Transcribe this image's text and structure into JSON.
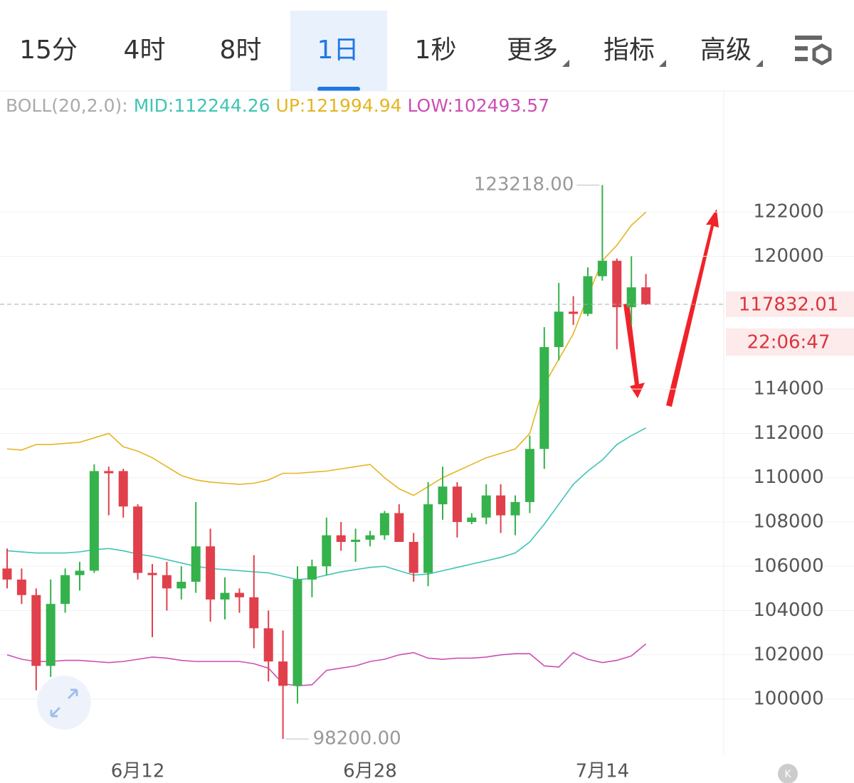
{
  "tabs": [
    {
      "label": "15分"
    },
    {
      "label": "4时"
    },
    {
      "label": "8时"
    },
    {
      "label": "1日"
    },
    {
      "label": "1秒"
    },
    {
      "label": "更多"
    },
    {
      "label": "指标"
    },
    {
      "label": "高级"
    }
  ],
  "chart_data": {
    "type": "candlestick",
    "indicator": {
      "label": "BOLL(20,2.0):",
      "mid": "MID:112244.26",
      "up": "UP:121994.94",
      "low": "LOW:102493.57"
    },
    "categories": [
      null,
      null,
      null,
      null,
      null,
      null,
      null,
      null,
      null,
      "6月12",
      null,
      null,
      null,
      null,
      null,
      null,
      null,
      null,
      null,
      null,
      null,
      null,
      null,
      null,
      null,
      "6月28",
      null,
      null,
      null,
      null,
      null,
      null,
      null,
      null,
      null,
      null,
      null,
      null,
      null,
      null,
      null,
      "7月14",
      null,
      null,
      null
    ],
    "open": [
      105900,
      105400,
      104700,
      101500,
      104300,
      105600,
      105800,
      110300,
      110300,
      108700,
      105700,
      105600,
      105000,
      105300,
      106900,
      104500,
      104800,
      104600,
      103200,
      101700,
      100600,
      105400,
      106000,
      107400,
      107100,
      107200,
      107400,
      108400,
      107100,
      105700,
      108800,
      109600,
      108000,
      108200,
      109200,
      108300,
      108900,
      111300,
      115900,
      117500,
      117400,
      119100,
      119800,
      117700,
      118600
    ],
    "high": [
      106800,
      105900,
      105000,
      105400,
      105900,
      106200,
      110600,
      110500,
      110400,
      108800,
      106100,
      106200,
      106000,
      108900,
      107700,
      105500,
      105000,
      106500,
      104000,
      103100,
      106000,
      106300,
      108200,
      108000,
      107700,
      107600,
      108500,
      108800,
      107500,
      109800,
      110500,
      109800,
      108400,
      109700,
      109700,
      109200,
      111900,
      116800,
      118800,
      118200,
      119500,
      123218,
      119900,
      120000,
      119200
    ],
    "low": [
      105000,
      104300,
      100400,
      101000,
      103900,
      104900,
      105700,
      108300,
      108200,
      105400,
      102800,
      104000,
      104500,
      104800,
      103500,
      103600,
      103900,
      102300,
      100800,
      98200,
      99800,
      104600,
      105600,
      106700,
      106200,
      106900,
      107200,
      107200,
      105300,
      105100,
      108100,
      107300,
      107900,
      107900,
      107500,
      107400,
      108400,
      110400,
      115300,
      116900,
      117300,
      118900,
      115800,
      116900,
      117800
    ],
    "close": [
      105400,
      104700,
      101500,
      104300,
      105600,
      105800,
      110300,
      110200,
      108700,
      105700,
      105600,
      105000,
      105300,
      106900,
      104500,
      104800,
      104600,
      103200,
      101700,
      100600,
      105400,
      106000,
      107400,
      107100,
      107200,
      107400,
      108400,
      107100,
      105700,
      108800,
      109600,
      108000,
      108200,
      109200,
      108300,
      108900,
      111300,
      115900,
      117500,
      117400,
      119100,
      119800,
      117700,
      118600,
      117832.01
    ],
    "bands": [
      {
        "name": "UP",
        "color": "#e6b422",
        "values": [
          111300,
          111250,
          111500,
          111500,
          111550,
          111600,
          111800,
          112000,
          111400,
          111200,
          110900,
          110500,
          110100,
          109900,
          109800,
          109750,
          109700,
          109750,
          109900,
          110200,
          110200,
          110250,
          110300,
          110400,
          110500,
          110600,
          110000,
          109500,
          109200,
          109600,
          110000,
          110300,
          110600,
          110900,
          111100,
          111300,
          112000,
          114200,
          115350,
          116500,
          118200,
          119800,
          120500,
          121400,
          121994.94
        ]
      },
      {
        "name": "MID",
        "color": "#40c4b4",
        "values": [
          106700,
          106650,
          106600,
          106600,
          106600,
          106650,
          106750,
          106800,
          106700,
          106550,
          106450,
          106300,
          106150,
          106000,
          105900,
          105850,
          105800,
          105750,
          105700,
          105550,
          105400,
          105450,
          105600,
          105750,
          105850,
          105950,
          106000,
          105800,
          105600,
          105650,
          105800,
          105950,
          106100,
          106250,
          106400,
          106600,
          107100,
          107900,
          108800,
          109700,
          110300,
          110800,
          111500,
          111900,
          112244.26
        ]
      },
      {
        "name": "LOW",
        "color": "#cc4fb4",
        "values": [
          102000,
          101800,
          101700,
          101700,
          101750,
          101750,
          101700,
          101650,
          101700,
          101800,
          101900,
          101850,
          101750,
          101700,
          101700,
          101700,
          101700,
          101600,
          101400,
          100700,
          100600,
          100650,
          101300,
          101400,
          101500,
          101700,
          101800,
          102000,
          102100,
          101850,
          101800,
          101850,
          101850,
          101900,
          102000,
          102050,
          102050,
          101500,
          101450,
          102100,
          101800,
          101650,
          101750,
          101950,
          102493.57
        ]
      }
    ],
    "up_color": "#35b24c",
    "down_color": "#e0404c",
    "ylim": [
      97400,
      127400
    ],
    "yticks": [
      122000,
      120000,
      114000,
      112000,
      110000,
      108000,
      106000,
      104000,
      102000,
      100000
    ],
    "grid": true,
    "high_label": "123218.00",
    "low_label": "98200.00",
    "price_label": "117832.01",
    "price": 117832.01,
    "timer": "22:06:47"
  }
}
